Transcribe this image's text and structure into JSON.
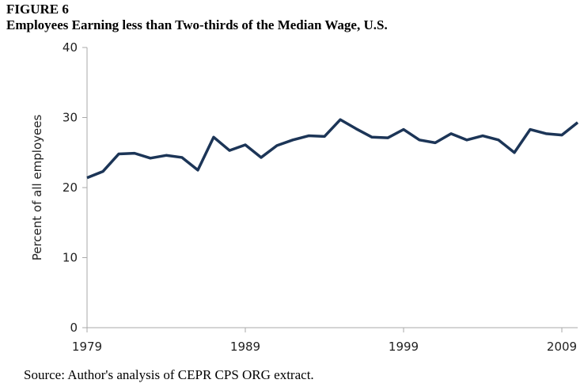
{
  "figure_label": "FIGURE 6",
  "source": "Source: Author's analysis of CEPR CPS ORG extract.",
  "chart_data": {
    "type": "line",
    "title": "Employees Earning less than Two-thirds of the Median Wage, U.S.",
    "xlabel": "",
    "ylabel": "Percent of all employees",
    "ylim": [
      0,
      40
    ],
    "yticks": [
      0,
      10,
      20,
      30,
      40
    ],
    "xlim": [
      1979,
      2010
    ],
    "xticks": [
      1979,
      1989,
      1999,
      2009
    ],
    "grid": false,
    "line_color": "#1c3557",
    "x": [
      1979,
      1980,
      1981,
      1982,
      1983,
      1984,
      1985,
      1986,
      1987,
      1988,
      1989,
      1990,
      1991,
      1992,
      1993,
      1994,
      1995,
      1996,
      1997,
      1998,
      1999,
      2000,
      2001,
      2002,
      2003,
      2004,
      2005,
      2006,
      2007,
      2008,
      2009,
      2010
    ],
    "values": [
      21.4,
      22.3,
      24.8,
      24.9,
      24.2,
      24.6,
      24.3,
      22.5,
      27.2,
      25.3,
      26.1,
      24.3,
      26.0,
      26.8,
      27.4,
      27.3,
      29.7,
      28.4,
      27.2,
      27.1,
      28.3,
      26.8,
      26.4,
      27.7,
      26.8,
      27.4,
      26.8,
      25.0,
      28.3,
      27.7,
      27.5,
      29.3
    ]
  }
}
